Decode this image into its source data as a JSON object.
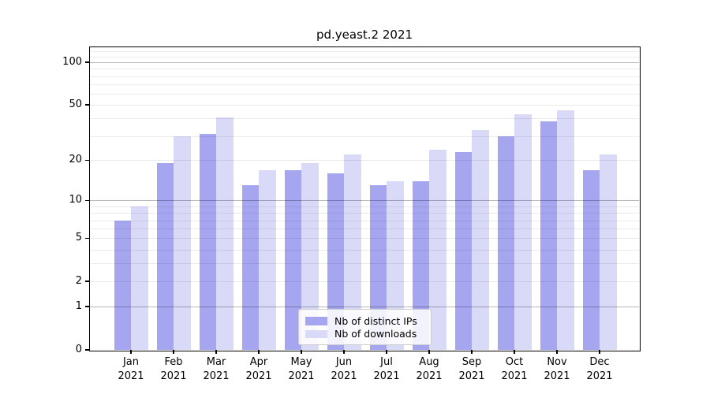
{
  "chart_data": {
    "type": "bar",
    "title": "pd.yeast.2 2021",
    "categories": [
      "Jan",
      "Feb",
      "Mar",
      "Apr",
      "May",
      "Jun",
      "Jul",
      "Aug",
      "Sep",
      "Oct",
      "Nov",
      "Dec"
    ],
    "year": "2021",
    "series": [
      {
        "name": "Nb of distinct IPs",
        "color": "#a5a5f0",
        "values": [
          7,
          19,
          31,
          13,
          17,
          16,
          13,
          14,
          23,
          30,
          38,
          17
        ]
      },
      {
        "name": "Nb of downloads",
        "color": "#d9d9f8",
        "values": [
          9,
          30,
          41,
          17,
          19,
          22,
          14,
          24,
          33,
          43,
          46,
          22
        ]
      }
    ],
    "yscale": "log1p",
    "ylim": [
      0,
      127
    ],
    "ytick_values": [
      100,
      50,
      20,
      10,
      5,
      2,
      1,
      0
    ],
    "ytick_labels": [
      "100",
      "50",
      "20",
      "10",
      "5",
      "2",
      "1",
      "0"
    ],
    "major_gridlines": [
      1,
      10,
      100
    ],
    "minor_gridlines": [
      2,
      3,
      4,
      5,
      6,
      7,
      8,
      9,
      20,
      30,
      40,
      50,
      60,
      70,
      80,
      90,
      110,
      120
    ],
    "grid": true,
    "legend_position": "lower center",
    "background_color": "#ffffff",
    "spine_color": "#000000"
  }
}
